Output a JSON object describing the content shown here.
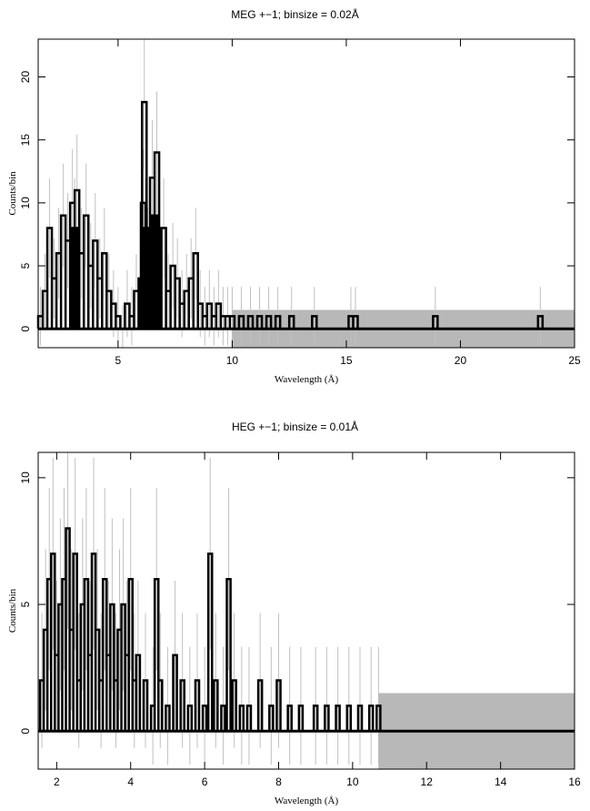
{
  "chart_data": [
    {
      "type": "line",
      "title": "MEG +−1; binsize = 0.02Å",
      "xlabel": "Wavelength (Å)",
      "ylabel": "Counts/bin",
      "xlim": [
        1.5,
        25
      ],
      "ylim": [
        -1.5,
        23
      ],
      "xticks": [
        5,
        10,
        15,
        20,
        25
      ],
      "yticks": [
        0,
        5,
        10,
        15,
        20
      ],
      "error_band": [
        -1.5,
        1.5
      ],
      "series": [
        {
          "values_description": "",
          "x": [
            1.6,
            1.8,
            2.0,
            2.2,
            2.4,
            2.6,
            2.8,
            3.0,
            3.1,
            3.2,
            3.4,
            3.6,
            3.8,
            4.0,
            4.2,
            4.4,
            4.6,
            4.8,
            5.0,
            5.2,
            5.4,
            5.6,
            5.8,
            6.0,
            6.1,
            6.15,
            6.2,
            6.3,
            6.4,
            6.5,
            6.6,
            6.7,
            6.8,
            7.0,
            7.2,
            7.4,
            7.6,
            7.8,
            8.0,
            8.2,
            8.4,
            8.6,
            8.8,
            9.0,
            9.2,
            9.4,
            9.6,
            9.8,
            10.0,
            10.4,
            10.8,
            11.2,
            11.6,
            12.0,
            12.6,
            13.6,
            15.2,
            15.4,
            18.9,
            23.5
          ],
          "y": [
            1,
            3,
            8,
            4,
            6,
            9,
            7,
            10,
            8,
            11,
            6,
            9,
            5,
            7,
            4,
            6,
            3,
            2,
            1,
            0,
            2,
            1,
            3,
            4,
            10,
            18,
            8,
            6,
            3,
            12,
            9,
            14,
            6,
            8,
            3,
            5,
            4,
            2,
            3,
            4,
            6,
            2,
            1,
            2,
            1,
            2,
            1,
            1,
            1,
            1,
            1,
            1,
            1,
            1,
            1,
            1,
            1,
            1,
            1,
            1
          ]
        }
      ]
    },
    {
      "type": "line",
      "title": "HEG +−1; binsize = 0.01Å",
      "xlabel": "Wavelength (Å)",
      "ylabel": "Counts/bin",
      "xlim": [
        1.5,
        16
      ],
      "ylim": [
        -1.5,
        11
      ],
      "xticks": [
        2,
        4,
        6,
        8,
        10,
        12,
        14,
        16
      ],
      "yticks": [
        0,
        5,
        10
      ],
      "error_band": [
        -1.5,
        1.5
      ],
      "series": [
        {
          "values_description": "",
          "x": [
            1.6,
            1.7,
            1.8,
            1.9,
            2.0,
            2.1,
            2.2,
            2.3,
            2.4,
            2.5,
            2.6,
            2.7,
            2.8,
            2.9,
            3.0,
            3.1,
            3.2,
            3.3,
            3.4,
            3.5,
            3.6,
            3.7,
            3.8,
            3.9,
            4.0,
            4.1,
            4.2,
            4.4,
            4.6,
            4.7,
            4.8,
            5.0,
            5.2,
            5.4,
            5.6,
            5.8,
            6.0,
            6.15,
            6.3,
            6.5,
            6.65,
            6.8,
            7.0,
            7.2,
            7.5,
            7.8,
            8.0,
            8.3,
            8.6,
            9.0,
            9.3,
            9.6,
            9.9,
            10.2,
            10.5,
            10.7
          ],
          "y": [
            2,
            4,
            6,
            7,
            3,
            5,
            6,
            8,
            4,
            7,
            2,
            5,
            6,
            3,
            7,
            4,
            2,
            6,
            3,
            5,
            2,
            4,
            5,
            3,
            6,
            2,
            3,
            2,
            1,
            6,
            2,
            1,
            3,
            2,
            1,
            2,
            1,
            7,
            2,
            1,
            6,
            2,
            1,
            1,
            2,
            1,
            2,
            1,
            1,
            1,
            1,
            1,
            1,
            1,
            1,
            1
          ]
        }
      ]
    }
  ]
}
